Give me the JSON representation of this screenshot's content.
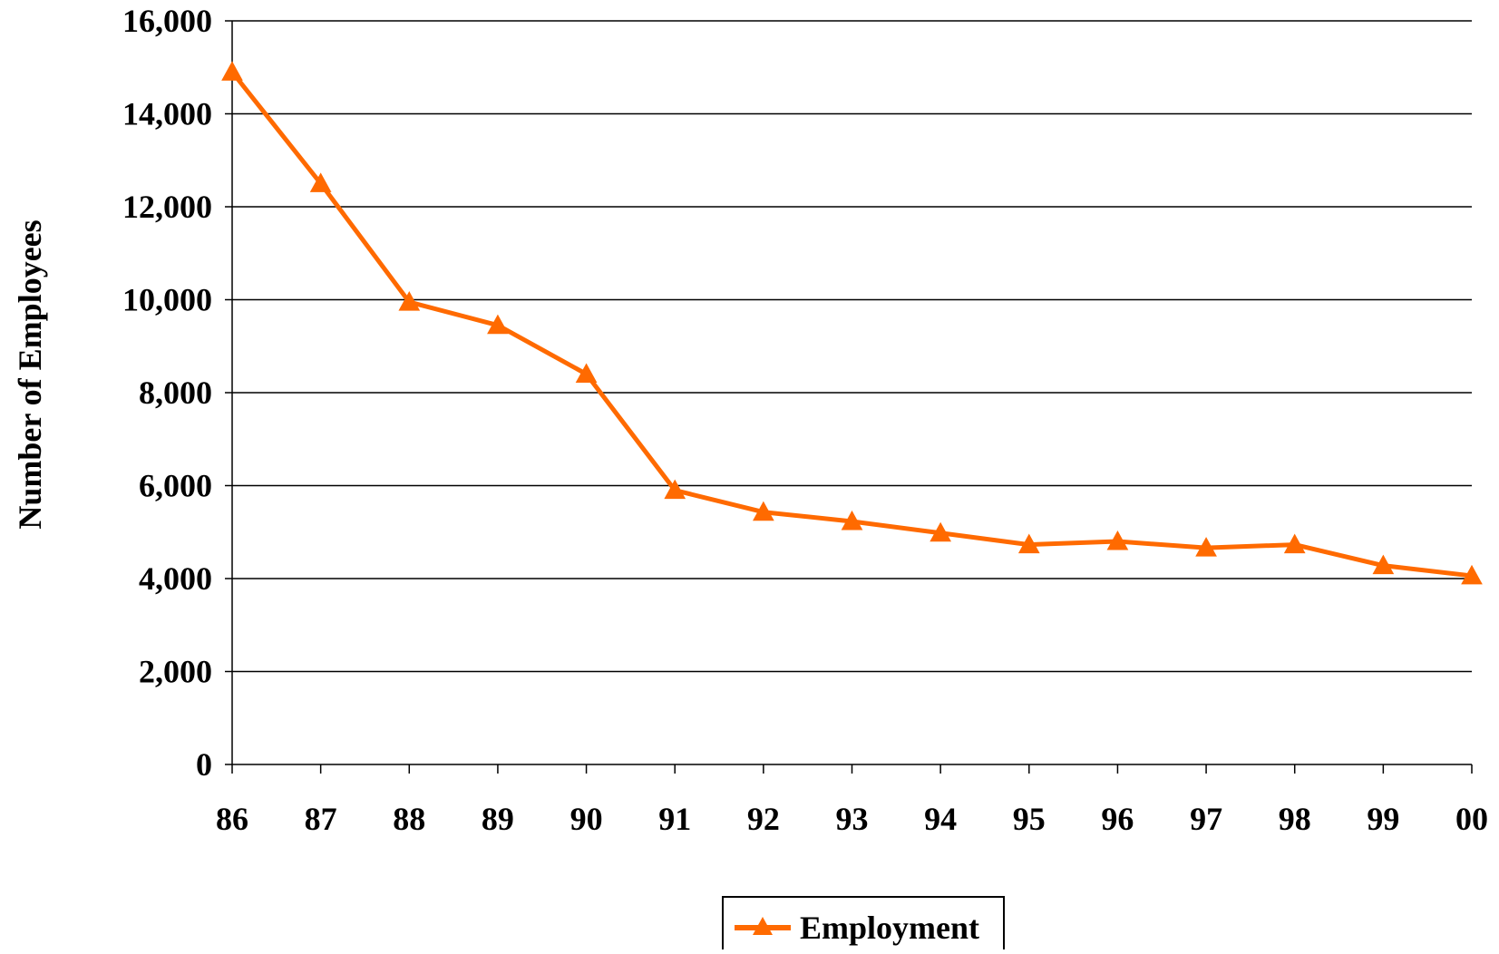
{
  "chart_data": {
    "type": "line",
    "title": "",
    "xlabel": "",
    "ylabel": "Number of Employees",
    "categories": [
      "86",
      "87",
      "88",
      "89",
      "90",
      "91",
      "92",
      "93",
      "94",
      "95",
      "96",
      "97",
      "98",
      "99",
      "00"
    ],
    "series": [
      {
        "name": "Employment",
        "values": [
          14900,
          12500,
          9950,
          9450,
          8400,
          5900,
          5430,
          5230,
          4980,
          4730,
          4800,
          4660,
          4730,
          4280,
          4060
        ],
        "color": "#FF6A00",
        "marker": "triangle"
      }
    ],
    "ylim": [
      0,
      16000
    ],
    "yticks": [
      "0",
      "2,000",
      "4,000",
      "6,000",
      "8,000",
      "10,000",
      "12,000",
      "14,000",
      "16,000"
    ],
    "ytick_values": [
      0,
      2000,
      4000,
      6000,
      8000,
      10000,
      12000,
      14000,
      16000
    ],
    "grid": "horizontal",
    "legend": "bottom-center"
  }
}
